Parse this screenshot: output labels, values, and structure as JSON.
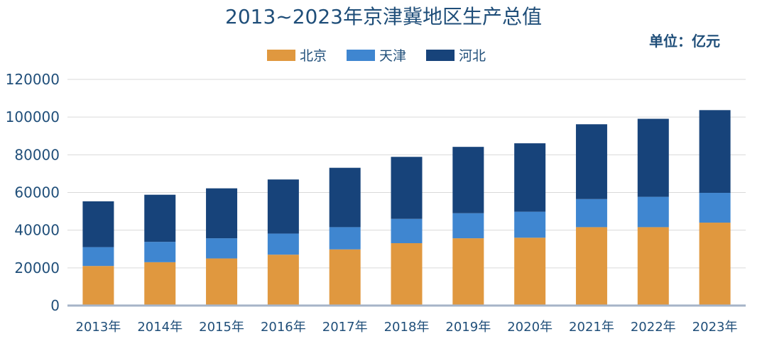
{
  "chart_data": {
    "type": "bar",
    "stacked": true,
    "title": "2013~2023年京津冀地区生产总值",
    "unit_label": "单位：亿元",
    "categories": [
      "2013年",
      "2014年",
      "2015年",
      "2016年",
      "2017年",
      "2018年",
      "2019年",
      "2020年",
      "2021年",
      "2022年",
      "2023年"
    ],
    "series": [
      {
        "name": "北京",
        "color": "#e0983f",
        "values": [
          21000,
          23000,
          25000,
          27000,
          29800,
          33100,
          35700,
          36000,
          41600,
          41600,
          44000
        ]
      },
      {
        "name": "天津",
        "color": "#3f86d0",
        "values": [
          10000,
          10800,
          10700,
          11200,
          11800,
          12900,
          13300,
          13800,
          14900,
          16100,
          15800
        ]
      },
      {
        "name": "河北",
        "color": "#17437a",
        "values": [
          24300,
          25000,
          26500,
          28700,
          31500,
          32900,
          35200,
          36300,
          39700,
          41400,
          43900
        ]
      }
    ],
    "ylim": [
      0,
      120000
    ],
    "yticks": [
      0,
      20000,
      40000,
      60000,
      80000,
      100000,
      120000
    ],
    "grid": true,
    "legend_position": "top"
  }
}
